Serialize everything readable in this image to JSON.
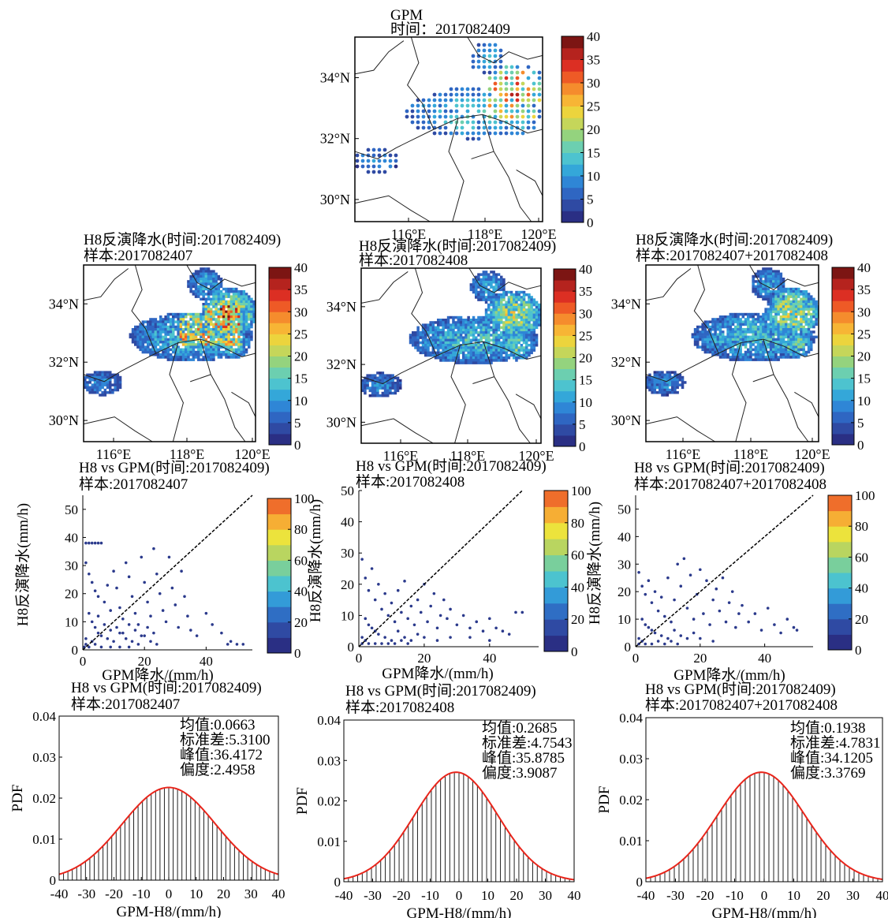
{
  "colors": {
    "rain_scale": [
      "#2a2f84",
      "#2f4aa3",
      "#2f66c2",
      "#2f86d6",
      "#34a7d9",
      "#4dc3cf",
      "#6ccfb0",
      "#94d37e",
      "#c5d65a",
      "#ecd43d",
      "#f7b535",
      "#f58c2d",
      "#ee5a26",
      "#dc2f23",
      "#b5231e",
      "#7c1513"
    ],
    "scatter_scale": [
      "#2a2f84",
      "#2f4aa3",
      "#2f6ec4",
      "#339bd8",
      "#4cc3cf",
      "#79cf9c",
      "#b9d560",
      "#ece33c",
      "#f6ae34",
      "#ef6e2b"
    ],
    "point": "#2b3a8c",
    "fit": "#e8251b",
    "bar": "#222222"
  },
  "maps": [
    {
      "id": "gpm",
      "title1": "GPM",
      "title2": "时间：2017082409",
      "lat_ticks": [
        "34°N",
        "32°N",
        "30°N"
      ],
      "lon_ticks": [
        "116°E",
        "118°E",
        "120°E"
      ],
      "cb_ticks": [
        "40",
        "35",
        "30",
        "25",
        "20",
        "15",
        "10",
        "5",
        "0"
      ]
    },
    {
      "id": "m1",
      "title1": "H8反演降水(时间:2017082409)",
      "title2": "样本:2017082407",
      "lat_ticks": [
        "34°N",
        "32°N",
        "30°N"
      ],
      "lon_ticks": [
        "116°E",
        "118°E",
        "120°E"
      ],
      "cb_ticks": [
        "40",
        "35",
        "30",
        "25",
        "20",
        "15",
        "10",
        "5",
        "0"
      ]
    },
    {
      "id": "m2",
      "title1": "H8反演降水(时间:2017082409)",
      "title2": "样本:2017082408",
      "lat_ticks": [
        "34°N",
        "32°N",
        "30°N"
      ],
      "lon_ticks": [
        "116°E",
        "118°E",
        "120°E"
      ],
      "cb_ticks": [
        "40",
        "35",
        "30",
        "25",
        "20",
        "15",
        "10",
        "5",
        "0"
      ]
    },
    {
      "id": "m3",
      "title1": "H8反演降水(时间:2017082409)",
      "title2": "样本:2017082407+2017082408",
      "lat_ticks": [
        "34°N",
        "32°N",
        "30°N"
      ],
      "lon_ticks": [
        "116°E",
        "118°E",
        "120°E"
      ],
      "cb_ticks": [
        "40",
        "35",
        "30",
        "25",
        "20",
        "15",
        "10",
        "5",
        "0"
      ]
    }
  ],
  "chart_data": [
    {
      "type": "scatter",
      "title": "H8 vs GPM(时间:2017082409)",
      "subtitle": "样本:2017082407",
      "xlabel": "GPM降水/(mm/h)",
      "ylabel": "H8反演降水(mm/h)",
      "xlim": [
        0,
        55
      ],
      "ylim": [
        0,
        55
      ],
      "x_ticks": [
        0,
        20,
        40
      ],
      "y_ticks": [
        0,
        10,
        20,
        30,
        40,
        50
      ],
      "cb_ticks": [
        0,
        20,
        40,
        60,
        80,
        100
      ],
      "reference_line": "1:1",
      "points": [
        [
          1,
          38
        ],
        [
          2,
          38
        ],
        [
          3,
          38
        ],
        [
          4,
          38
        ],
        [
          5,
          38
        ],
        [
          6,
          38
        ],
        [
          1,
          31
        ],
        [
          2,
          27
        ],
        [
          3,
          24
        ],
        [
          4,
          21
        ],
        [
          5,
          19
        ],
        [
          7,
          17
        ],
        [
          8,
          23
        ],
        [
          9,
          14
        ],
        [
          10,
          28
        ],
        [
          11,
          22
        ],
        [
          12,
          15
        ],
        [
          13,
          11
        ],
        [
          14,
          31
        ],
        [
          15,
          26
        ],
        [
          16,
          19
        ],
        [
          17,
          13
        ],
        [
          18,
          9
        ],
        [
          19,
          33
        ],
        [
          20,
          24
        ],
        [
          21,
          17
        ],
        [
          22,
          12
        ],
        [
          23,
          36
        ],
        [
          24,
          27
        ],
        [
          25,
          20
        ],
        [
          26,
          14
        ],
        [
          27,
          10
        ],
        [
          28,
          33
        ],
        [
          29,
          22
        ],
        [
          30,
          16
        ],
        [
          31,
          8
        ],
        [
          32,
          28
        ],
        [
          33,
          19
        ],
        [
          34,
          12
        ],
        [
          35,
          7
        ],
        [
          37,
          5
        ],
        [
          40,
          13
        ],
        [
          42,
          9
        ],
        [
          45,
          6
        ],
        [
          47,
          2
        ],
        [
          48,
          3
        ],
        [
          50,
          2
        ],
        [
          52,
          2
        ],
        [
          2,
          13
        ],
        [
          3,
          10
        ],
        [
          4,
          8
        ],
        [
          5,
          6
        ],
        [
          6,
          5
        ],
        [
          8,
          4
        ],
        [
          10,
          3
        ],
        [
          12,
          6
        ],
        [
          14,
          4
        ],
        [
          16,
          3
        ],
        [
          18,
          2
        ],
        [
          20,
          5
        ],
        [
          22,
          3
        ],
        [
          24,
          2
        ],
        [
          1,
          4
        ],
        [
          1,
          2
        ],
        [
          2,
          1
        ],
        [
          0.5,
          1
        ],
        [
          3,
          3
        ],
        [
          4,
          2
        ],
        [
          6,
          1
        ],
        [
          9,
          1
        ],
        [
          12,
          1
        ],
        [
          15,
          1
        ],
        [
          5,
          12
        ],
        [
          7,
          9
        ],
        [
          9,
          7
        ],
        [
          11,
          8
        ],
        [
          13,
          6
        ],
        [
          15,
          9
        ],
        [
          17,
          7
        ],
        [
          19,
          5
        ],
        [
          21,
          8
        ],
        [
          23,
          6
        ]
      ]
    },
    {
      "type": "scatter",
      "title": "H8 vs GPM(时间:2017082409)",
      "subtitle": "样本:2017082408",
      "xlabel": "GPM降水/(mm/h)",
      "ylabel": "H8反演降水(mm/h)",
      "xlim": [
        0,
        55
      ],
      "ylim": [
        0,
        50
      ],
      "x_ticks": [
        0,
        20,
        40
      ],
      "y_ticks": [
        0,
        10,
        20,
        30,
        40,
        50
      ],
      "cb_ticks": [
        0,
        20,
        40,
        60,
        80,
        100
      ],
      "reference_line": "1:1",
      "points": [
        [
          1,
          28
        ],
        [
          2,
          22
        ],
        [
          3,
          18
        ],
        [
          4,
          25
        ],
        [
          5,
          15
        ],
        [
          6,
          20
        ],
        [
          7,
          12
        ],
        [
          8,
          17
        ],
        [
          9,
          10
        ],
        [
          10,
          14
        ],
        [
          11,
          8
        ],
        [
          12,
          18
        ],
        [
          13,
          11
        ],
        [
          14,
          21
        ],
        [
          15,
          9
        ],
        [
          16,
          13
        ],
        [
          17,
          7
        ],
        [
          18,
          15
        ],
        [
          19,
          11
        ],
        [
          20,
          20
        ],
        [
          21,
          8
        ],
        [
          22,
          13
        ],
        [
          23,
          17
        ],
        [
          24,
          6
        ],
        [
          25,
          10
        ],
        [
          26,
          15
        ],
        [
          27,
          9
        ],
        [
          28,
          12
        ],
        [
          30,
          7
        ],
        [
          32,
          10
        ],
        [
          34,
          6
        ],
        [
          36,
          8
        ],
        [
          38,
          5
        ],
        [
          40,
          9
        ],
        [
          42,
          6
        ],
        [
          44,
          5
        ],
        [
          46,
          4
        ],
        [
          48,
          11
        ],
        [
          50,
          11
        ],
        [
          2,
          9
        ],
        [
          3,
          7
        ],
        [
          4,
          6
        ],
        [
          5,
          5
        ],
        [
          6,
          4
        ],
        [
          8,
          3
        ],
        [
          10,
          2
        ],
        [
          12,
          5
        ],
        [
          14,
          3
        ],
        [
          16,
          2
        ],
        [
          18,
          4
        ],
        [
          1,
          3
        ],
        [
          1,
          1
        ],
        [
          2,
          2
        ],
        [
          3,
          1
        ],
        [
          5,
          1
        ],
        [
          7,
          1
        ],
        [
          9,
          1
        ],
        [
          11,
          1
        ],
        [
          13,
          2
        ],
        [
          15,
          1
        ],
        [
          20,
          3
        ],
        [
          24,
          2
        ],
        [
          28,
          3
        ],
        [
          34,
          3
        ],
        [
          40,
          2
        ]
      ]
    },
    {
      "type": "scatter",
      "title": "H8 vs GPM(时间:2017082409)",
      "subtitle": "样本:2017082407+2017082408",
      "xlabel": "GPM降水/(mm/h)",
      "ylabel": "H8反演降水(mm/h)",
      "xlim": [
        0,
        55
      ],
      "ylim": [
        0,
        55
      ],
      "x_ticks": [
        0,
        20,
        40
      ],
      "y_ticks": [
        0,
        10,
        20,
        30,
        40,
        50
      ],
      "cb_ticks": [
        0,
        20,
        40,
        60,
        80,
        100
      ],
      "reference_line": "1:1",
      "points": [
        [
          1,
          27
        ],
        [
          2,
          22
        ],
        [
          3,
          19
        ],
        [
          4,
          24
        ],
        [
          5,
          16
        ],
        [
          6,
          20
        ],
        [
          7,
          13
        ],
        [
          8,
          18
        ],
        [
          9,
          11
        ],
        [
          10,
          25
        ],
        [
          11,
          9
        ],
        [
          12,
          17
        ],
        [
          13,
          30
        ],
        [
          14,
          22
        ],
        [
          15,
          32
        ],
        [
          16,
          14
        ],
        [
          17,
          26
        ],
        [
          18,
          10
        ],
        [
          19,
          19
        ],
        [
          20,
          28
        ],
        [
          21,
          12
        ],
        [
          22,
          24
        ],
        [
          23,
          8
        ],
        [
          24,
          17
        ],
        [
          25,
          21
        ],
        [
          26,
          13
        ],
        [
          27,
          25
        ],
        [
          28,
          9
        ],
        [
          29,
          16
        ],
        [
          30,
          20
        ],
        [
          31,
          7
        ],
        [
          32,
          12
        ],
        [
          33,
          15
        ],
        [
          35,
          9
        ],
        [
          37,
          12
        ],
        [
          39,
          6
        ],
        [
          41,
          14
        ],
        [
          43,
          8
        ],
        [
          45,
          5
        ],
        [
          47,
          10
        ],
        [
          49,
          7
        ],
        [
          50,
          6
        ],
        [
          2,
          10
        ],
        [
          3,
          8
        ],
        [
          4,
          7
        ],
        [
          5,
          6
        ],
        [
          6,
          5
        ],
        [
          8,
          4
        ],
        [
          10,
          3
        ],
        [
          12,
          6
        ],
        [
          14,
          4
        ],
        [
          16,
          3
        ],
        [
          18,
          5
        ],
        [
          1,
          3
        ],
        [
          1,
          1
        ],
        [
          2,
          2
        ],
        [
          3,
          1
        ],
        [
          5,
          1
        ],
        [
          7,
          2
        ],
        [
          9,
          1
        ],
        [
          11,
          2
        ],
        [
          13,
          1
        ],
        [
          20,
          3
        ],
        [
          24,
          2
        ]
      ]
    },
    {
      "type": "histogram",
      "title": "H8 vs GPM(时间:2017082409)",
      "subtitle": "样本:2017082407",
      "xlabel": "GPM-H8/(mm/h)",
      "ylabel": "PDF",
      "xlim": [
        -40,
        40
      ],
      "ylim": [
        0,
        0.04
      ],
      "x_ticks": [
        -40,
        -30,
        -20,
        -10,
        0,
        10,
        20,
        30,
        40
      ],
      "y_ticks": [
        0,
        0.01,
        0.02,
        0.03,
        0.04
      ],
      "mean": 0.0663,
      "std": 5.31,
      "peak": 0.0226,
      "center": 0,
      "width": 17,
      "stats": [
        "均值:0.0663",
        "标准差:5.3100",
        "峰值:36.4172",
        "偏度:2.4958"
      ]
    },
    {
      "type": "histogram",
      "title": "H8 vs GPM(时间:2017082409)",
      "subtitle": "样本:2017082408",
      "xlabel": "GPM-H8/(mm/h)",
      "ylabel": "PDF",
      "xlim": [
        -40,
        40
      ],
      "ylim": [
        0,
        0.04
      ],
      "x_ticks": [
        -40,
        -30,
        -20,
        -10,
        0,
        10,
        20,
        30,
        40
      ],
      "y_ticks": [
        0,
        0.01,
        0.02,
        0.03,
        0.04
      ],
      "mean": 0.2685,
      "std": 4.7543,
      "peak": 0.0271,
      "center": -1,
      "width": 14.5,
      "stats": [
        "均值:0.2685",
        "标准差:4.7543",
        "峰值:35.8785",
        "偏度:3.9087"
      ]
    },
    {
      "type": "histogram",
      "title": "H8 vs GPM(时间:2017082409)",
      "subtitle": "样本:2017082407+2017082408",
      "xlabel": "GPM-H8/(mm/h)",
      "ylabel": "PDF",
      "xlim": [
        -40,
        40
      ],
      "ylim": [
        0,
        0.04
      ],
      "x_ticks": [
        -40,
        -30,
        -20,
        -10,
        0,
        10,
        20,
        30,
        40
      ],
      "y_ticks": [
        0,
        0.01,
        0.02,
        0.03,
        0.04
      ],
      "mean": 0.1938,
      "std": 4.7831,
      "peak": 0.0267,
      "center": -1,
      "width": 14.8,
      "stats": [
        "均值:0.1938",
        "标准差:4.7831",
        "峰值:34.1205",
        "偏度:3.3769"
      ]
    }
  ]
}
